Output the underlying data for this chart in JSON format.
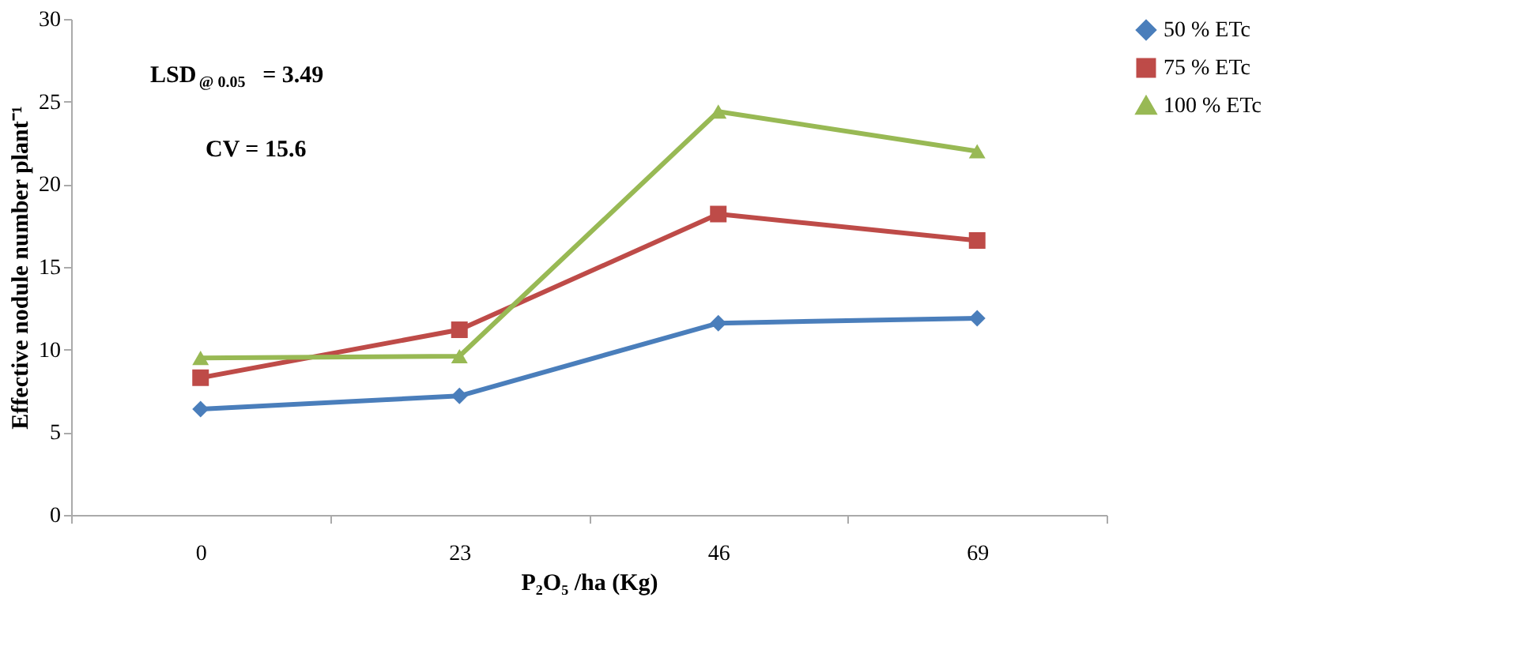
{
  "chart_data": {
    "type": "line",
    "xlabel": "P₂O₅ /ha (Kg)",
    "ylabel": "Effective  nodule number plant⁻¹",
    "categories": [
      "0",
      "23",
      "46",
      "69"
    ],
    "ylim": [
      0,
      30
    ],
    "yticks": [
      0,
      5,
      10,
      15,
      20,
      25,
      30
    ],
    "grid": false,
    "legend": "right",
    "line_style": "solid",
    "annotations": [
      "LSD$_{@ 0.05}$ =  3.49",
      "CV = 15.6"
    ],
    "series": [
      {
        "name": "50 % ETc",
        "color": "#4a7ebb",
        "marker": "diamond",
        "values": [
          6.4,
          7.2,
          11.6,
          11.9
        ]
      },
      {
        "name": "75 % ETc",
        "color": "#be4b48",
        "marker": "square",
        "values": [
          8.3,
          11.2,
          18.2,
          16.6
        ]
      },
      {
        "name": "100 % ETc",
        "color": "#98b954",
        "marker": "triangle",
        "values": [
          9.5,
          9.6,
          24.4,
          22.0
        ]
      }
    ]
  }
}
